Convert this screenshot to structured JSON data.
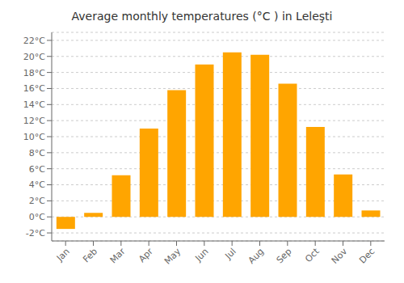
{
  "chart_data": {
    "type": "bar",
    "title": "Average monthly temperatures (°C ) in Leleşti",
    "categories": [
      "Jan",
      "Feb",
      "Mar",
      "Apr",
      "May",
      "Jun",
      "Jul",
      "Aug",
      "Sep",
      "Oct",
      "Nov",
      "Dec"
    ],
    "values": [
      -1.5,
      0.5,
      5.2,
      11.0,
      15.8,
      19.0,
      20.5,
      20.2,
      16.6,
      11.2,
      5.3,
      0.8
    ],
    "color": "#FFA500",
    "ylim": [
      -3,
      23
    ],
    "yticks": [
      {
        "value": -2,
        "label": "-2°C"
      },
      {
        "value": 0,
        "label": "0°C"
      },
      {
        "value": 2,
        "label": "2°C"
      },
      {
        "value": 4,
        "label": "4°C"
      },
      {
        "value": 6,
        "label": "6°C"
      },
      {
        "value": 8,
        "label": "8°C"
      },
      {
        "value": 10,
        "label": "10°C"
      },
      {
        "value": 12,
        "label": "12°C"
      },
      {
        "value": 14,
        "label": "14°C"
      },
      {
        "value": 16,
        "label": "16°C"
      },
      {
        "value": 18,
        "label": "18°C"
      },
      {
        "value": 20,
        "label": "20°C"
      },
      {
        "value": 22,
        "label": "22°C"
      }
    ],
    "grid": true
  }
}
